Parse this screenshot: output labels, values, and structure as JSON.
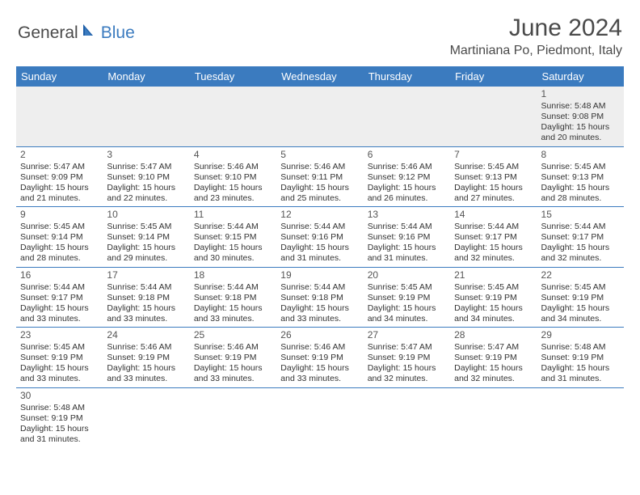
{
  "logo": {
    "text1": "General",
    "text2": "Blue"
  },
  "header": {
    "month_title": "June 2024",
    "location": "Martiniana Po, Piedmont, Italy"
  },
  "colors": {
    "header_bg": "#3b7bbf",
    "header_text": "#ffffff",
    "border": "#3b7bbf",
    "empty_bg": "#eeeeee",
    "body_text": "#333333",
    "title_text": "#4a4a4a"
  },
  "day_names": [
    "Sunday",
    "Monday",
    "Tuesday",
    "Wednesday",
    "Thursday",
    "Friday",
    "Saturday"
  ],
  "weeks": [
    [
      null,
      null,
      null,
      null,
      null,
      null,
      {
        "n": "1",
        "sr": "Sunrise: 5:48 AM",
        "ss": "Sunset: 9:08 PM",
        "d1": "Daylight: 15 hours",
        "d2": "and 20 minutes."
      }
    ],
    [
      {
        "n": "2",
        "sr": "Sunrise: 5:47 AM",
        "ss": "Sunset: 9:09 PM",
        "d1": "Daylight: 15 hours",
        "d2": "and 21 minutes."
      },
      {
        "n": "3",
        "sr": "Sunrise: 5:47 AM",
        "ss": "Sunset: 9:10 PM",
        "d1": "Daylight: 15 hours",
        "d2": "and 22 minutes."
      },
      {
        "n": "4",
        "sr": "Sunrise: 5:46 AM",
        "ss": "Sunset: 9:10 PM",
        "d1": "Daylight: 15 hours",
        "d2": "and 23 minutes."
      },
      {
        "n": "5",
        "sr": "Sunrise: 5:46 AM",
        "ss": "Sunset: 9:11 PM",
        "d1": "Daylight: 15 hours",
        "d2": "and 25 minutes."
      },
      {
        "n": "6",
        "sr": "Sunrise: 5:46 AM",
        "ss": "Sunset: 9:12 PM",
        "d1": "Daylight: 15 hours",
        "d2": "and 26 minutes."
      },
      {
        "n": "7",
        "sr": "Sunrise: 5:45 AM",
        "ss": "Sunset: 9:13 PM",
        "d1": "Daylight: 15 hours",
        "d2": "and 27 minutes."
      },
      {
        "n": "8",
        "sr": "Sunrise: 5:45 AM",
        "ss": "Sunset: 9:13 PM",
        "d1": "Daylight: 15 hours",
        "d2": "and 28 minutes."
      }
    ],
    [
      {
        "n": "9",
        "sr": "Sunrise: 5:45 AM",
        "ss": "Sunset: 9:14 PM",
        "d1": "Daylight: 15 hours",
        "d2": "and 28 minutes."
      },
      {
        "n": "10",
        "sr": "Sunrise: 5:45 AM",
        "ss": "Sunset: 9:14 PM",
        "d1": "Daylight: 15 hours",
        "d2": "and 29 minutes."
      },
      {
        "n": "11",
        "sr": "Sunrise: 5:44 AM",
        "ss": "Sunset: 9:15 PM",
        "d1": "Daylight: 15 hours",
        "d2": "and 30 minutes."
      },
      {
        "n": "12",
        "sr": "Sunrise: 5:44 AM",
        "ss": "Sunset: 9:16 PM",
        "d1": "Daylight: 15 hours",
        "d2": "and 31 minutes."
      },
      {
        "n": "13",
        "sr": "Sunrise: 5:44 AM",
        "ss": "Sunset: 9:16 PM",
        "d1": "Daylight: 15 hours",
        "d2": "and 31 minutes."
      },
      {
        "n": "14",
        "sr": "Sunrise: 5:44 AM",
        "ss": "Sunset: 9:17 PM",
        "d1": "Daylight: 15 hours",
        "d2": "and 32 minutes."
      },
      {
        "n": "15",
        "sr": "Sunrise: 5:44 AM",
        "ss": "Sunset: 9:17 PM",
        "d1": "Daylight: 15 hours",
        "d2": "and 32 minutes."
      }
    ],
    [
      {
        "n": "16",
        "sr": "Sunrise: 5:44 AM",
        "ss": "Sunset: 9:17 PM",
        "d1": "Daylight: 15 hours",
        "d2": "and 33 minutes."
      },
      {
        "n": "17",
        "sr": "Sunrise: 5:44 AM",
        "ss": "Sunset: 9:18 PM",
        "d1": "Daylight: 15 hours",
        "d2": "and 33 minutes."
      },
      {
        "n": "18",
        "sr": "Sunrise: 5:44 AM",
        "ss": "Sunset: 9:18 PM",
        "d1": "Daylight: 15 hours",
        "d2": "and 33 minutes."
      },
      {
        "n": "19",
        "sr": "Sunrise: 5:44 AM",
        "ss": "Sunset: 9:18 PM",
        "d1": "Daylight: 15 hours",
        "d2": "and 33 minutes."
      },
      {
        "n": "20",
        "sr": "Sunrise: 5:45 AM",
        "ss": "Sunset: 9:19 PM",
        "d1": "Daylight: 15 hours",
        "d2": "and 34 minutes."
      },
      {
        "n": "21",
        "sr": "Sunrise: 5:45 AM",
        "ss": "Sunset: 9:19 PM",
        "d1": "Daylight: 15 hours",
        "d2": "and 34 minutes."
      },
      {
        "n": "22",
        "sr": "Sunrise: 5:45 AM",
        "ss": "Sunset: 9:19 PM",
        "d1": "Daylight: 15 hours",
        "d2": "and 34 minutes."
      }
    ],
    [
      {
        "n": "23",
        "sr": "Sunrise: 5:45 AM",
        "ss": "Sunset: 9:19 PM",
        "d1": "Daylight: 15 hours",
        "d2": "and 33 minutes."
      },
      {
        "n": "24",
        "sr": "Sunrise: 5:46 AM",
        "ss": "Sunset: 9:19 PM",
        "d1": "Daylight: 15 hours",
        "d2": "and 33 minutes."
      },
      {
        "n": "25",
        "sr": "Sunrise: 5:46 AM",
        "ss": "Sunset: 9:19 PM",
        "d1": "Daylight: 15 hours",
        "d2": "and 33 minutes."
      },
      {
        "n": "26",
        "sr": "Sunrise: 5:46 AM",
        "ss": "Sunset: 9:19 PM",
        "d1": "Daylight: 15 hours",
        "d2": "and 33 minutes."
      },
      {
        "n": "27",
        "sr": "Sunrise: 5:47 AM",
        "ss": "Sunset: 9:19 PM",
        "d1": "Daylight: 15 hours",
        "d2": "and 32 minutes."
      },
      {
        "n": "28",
        "sr": "Sunrise: 5:47 AM",
        "ss": "Sunset: 9:19 PM",
        "d1": "Daylight: 15 hours",
        "d2": "and 32 minutes."
      },
      {
        "n": "29",
        "sr": "Sunrise: 5:48 AM",
        "ss": "Sunset: 9:19 PM",
        "d1": "Daylight: 15 hours",
        "d2": "and 31 minutes."
      }
    ],
    [
      {
        "n": "30",
        "sr": "Sunrise: 5:48 AM",
        "ss": "Sunset: 9:19 PM",
        "d1": "Daylight: 15 hours",
        "d2": "and 31 minutes."
      },
      null,
      null,
      null,
      null,
      null,
      null
    ]
  ]
}
